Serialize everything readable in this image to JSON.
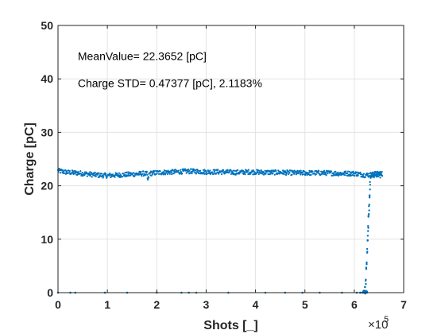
{
  "chart_data": {
    "type": "scatter",
    "title": "",
    "xlabel": "Shots [_]",
    "ylabel": "Charge [pC]",
    "xlim": [
      0,
      700000
    ],
    "ylim": [
      0,
      50
    ],
    "x_ticks": [
      0,
      100000,
      200000,
      300000,
      400000,
      500000,
      600000,
      700000
    ],
    "x_tick_labels": [
      "0",
      "1",
      "2",
      "3",
      "4",
      "5",
      "6",
      "7"
    ],
    "x_exponent": {
      "base": "×10",
      "power": "5"
    },
    "y_ticks": [
      0,
      10,
      20,
      30,
      40,
      50
    ],
    "y_tick_labels": [
      "0",
      "10",
      "20",
      "30",
      "40",
      "50"
    ],
    "grid": true,
    "marker_color": "#0072BD",
    "annotations": [
      {
        "text": "MeanValue= 22.3652 [pC]",
        "x": 40000,
        "y": 43.5
      },
      {
        "text": "Charge STD= 0.47377 [pC], 2.1183%",
        "x": 40000,
        "y": 38.5
      }
    ],
    "series": [
      {
        "values_description_x": [
          0,
          20000,
          40000,
          60000,
          80000,
          100000,
          120000,
          140000,
          160000,
          175000,
          180000,
          182000,
          185000,
          195000,
          210000,
          240000,
          260000,
          280000,
          300000,
          330000,
          360000,
          390000,
          420000,
          450000,
          480000,
          510000,
          540000,
          570000,
          600000,
          610000,
          620000,
          655000
        ],
        "x": [
          0,
          20000,
          40000,
          60000,
          80000,
          100000,
          120000,
          140000,
          160000,
          175000,
          180000,
          182000,
          185000,
          195000,
          210000,
          240000,
          260000,
          280000,
          300000,
          330000,
          360000,
          390000,
          420000,
          450000,
          480000,
          510000,
          540000,
          570000,
          600000,
          610000,
          620000,
          655000
        ],
        "y": [
          22.8,
          22.5,
          22.4,
          22.2,
          22.0,
          21.9,
          22.0,
          22.1,
          22.2,
          22.3,
          22.2,
          21.0,
          22.3,
          22.4,
          22.5,
          22.6,
          22.7,
          22.7,
          22.6,
          22.6,
          22.5,
          22.6,
          22.5,
          22.5,
          22.4,
          22.4,
          22.4,
          22.3,
          22.3,
          22.2,
          22.0,
          22.2
        ]
      }
    ],
    "outliers_zero": [
      {
        "x": 0,
        "y": 0
      },
      {
        "x": 25000,
        "y": 0
      },
      {
        "x": 35000,
        "y": 0
      },
      {
        "x": 95000,
        "y": 0
      },
      {
        "x": 140000,
        "y": 0
      },
      {
        "x": 200000,
        "y": 0
      },
      {
        "x": 250000,
        "y": 0
      },
      {
        "x": 265000,
        "y": 0
      },
      {
        "x": 280000,
        "y": 0
      },
      {
        "x": 345000,
        "y": 0
      },
      {
        "x": 420000,
        "y": 0
      },
      {
        "x": 460000,
        "y": 0
      },
      {
        "x": 495000,
        "y": 0
      },
      {
        "x": 530000,
        "y": 0
      },
      {
        "x": 575000,
        "y": 0
      },
      {
        "x": 605000,
        "y": 0
      },
      {
        "x": 612000,
        "y": 0
      },
      {
        "x": 616000,
        "y": 0
      },
      {
        "x": 620000,
        "y": 0
      }
    ],
    "ramp": [
      {
        "x": 622000,
        "y": 0.5
      },
      {
        "x": 623000,
        "y": 2
      },
      {
        "x": 624000,
        "y": 4
      },
      {
        "x": 625000,
        "y": 6
      },
      {
        "x": 626000,
        "y": 8
      },
      {
        "x": 627000,
        "y": 10
      },
      {
        "x": 628000,
        "y": 12
      },
      {
        "x": 629000,
        "y": 14
      },
      {
        "x": 630000,
        "y": 16
      },
      {
        "x": 631000,
        "y": 18
      },
      {
        "x": 632000,
        "y": 20
      },
      {
        "x": 633000,
        "y": 21.5
      }
    ]
  }
}
